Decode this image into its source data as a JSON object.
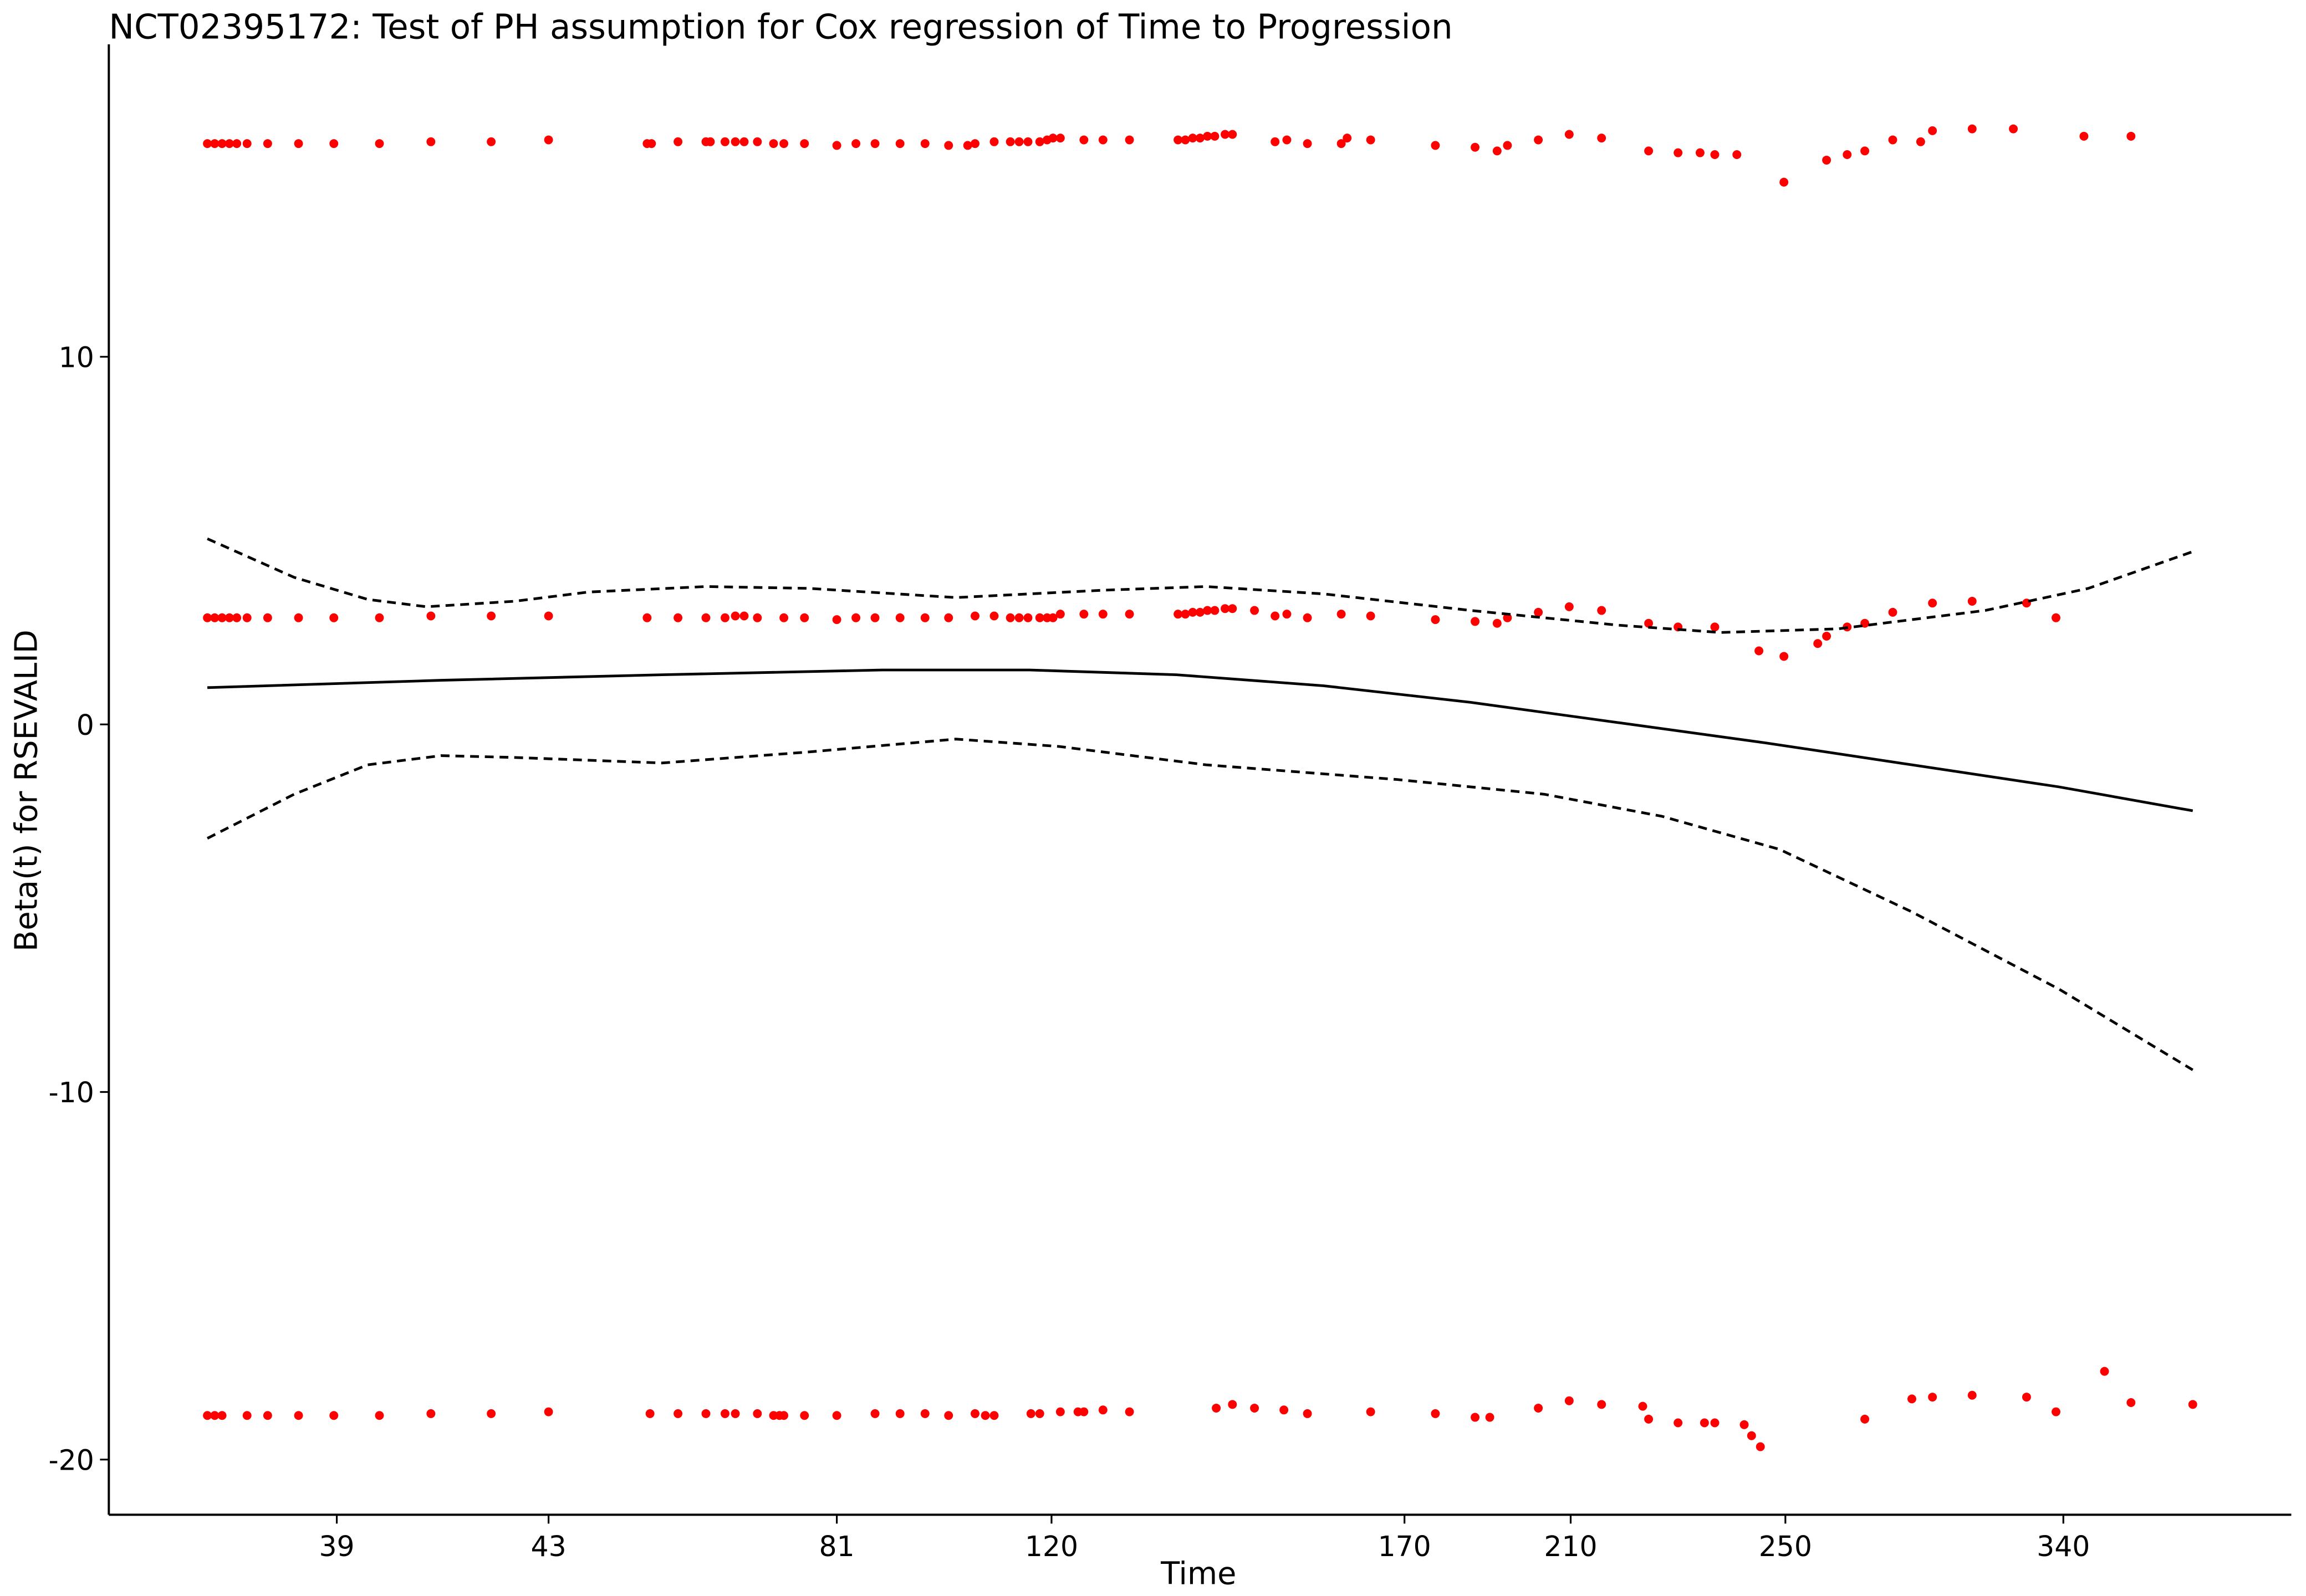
{
  "chart_data": {
    "type": "scatter",
    "title": "NCT02395172: Test of PH assumption for Cox regression of Time to Progression",
    "x_label": "Time",
    "y_label": "Beta(t) for RSEVALID",
    "xlim": [
      0,
      148.4
    ],
    "ylim": [
      -21.5,
      18.5
    ],
    "xticks": [
      {
        "value": 15.5,
        "label": "39"
      },
      {
        "value": 29.9,
        "label": "43"
      },
      {
        "value": 49.5,
        "label": "81"
      },
      {
        "value": 64.1,
        "label": "120"
      },
      {
        "value": 88.1,
        "label": "170"
      },
      {
        "value": 99.4,
        "label": "210"
      },
      {
        "value": 114.0,
        "label": "250"
      },
      {
        "value": 132.9,
        "label": "340"
      }
    ],
    "yticks": [
      -20,
      -10,
      0,
      10
    ],
    "series": [
      {
        "style": "points",
        "color": "#ff0000",
        "x": [
          6.7,
          7.2,
          7.7,
          8.2,
          8.7,
          9.4,
          10.8,
          12.9,
          15.3,
          18.4,
          21.9,
          26,
          29.9,
          36.6,
          36.9,
          38.7,
          40.6,
          40.9,
          41.9,
          42.6,
          43.2,
          44.1,
          45.2,
          45.9,
          47.3,
          49.5,
          50.8,
          52.1,
          53.8,
          55.5,
          57.1,
          58.4,
          58.9,
          60.2,
          61.3,
          61.9,
          62.5,
          63.3,
          63.8,
          64.2,
          64.7,
          66.3,
          67.6,
          69.4,
          72.7,
          73.2,
          73.7,
          74.2,
          74.7,
          75.2,
          75.9,
          76.4,
          79.3,
          80.1,
          81.5,
          83.8,
          84.2,
          85.8,
          90.2,
          92.9,
          94.4,
          95.1,
          97.2,
          99.3,
          101.5,
          104.7,
          106.7,
          108.2,
          109.2,
          110.7,
          113.9,
          116.8,
          118.2,
          119.4,
          121.3,
          123.2,
          124,
          126.7,
          129.5,
          134.3,
          137.5
        ],
        "values": [
          15.8,
          15.8,
          15.8,
          15.8,
          15.8,
          15.8,
          15.8,
          15.8,
          15.8,
          15.8,
          15.85,
          15.85,
          15.9,
          15.8,
          15.8,
          15.85,
          15.85,
          15.85,
          15.85,
          15.85,
          15.85,
          15.85,
          15.8,
          15.8,
          15.8,
          15.75,
          15.8,
          15.8,
          15.8,
          15.8,
          15.75,
          15.75,
          15.8,
          15.85,
          15.85,
          15.85,
          15.85,
          15.85,
          15.9,
          15.95,
          15.95,
          15.9,
          15.9,
          15.9,
          15.9,
          15.9,
          15.95,
          15.95,
          16.0,
          16.0,
          16.05,
          16.05,
          15.85,
          15.9,
          15.8,
          15.8,
          15.95,
          15.9,
          15.75,
          15.7,
          15.6,
          15.75,
          15.9,
          16.05,
          15.95,
          15.6,
          15.55,
          15.55,
          15.5,
          15.5,
          14.75,
          15.35,
          15.5,
          15.6,
          15.9,
          15.85,
          16.15,
          16.2,
          16.2,
          16.0,
          16.0
        ]
      },
      {
        "style": "points",
        "color": "#ff0000",
        "x": [
          6.7,
          7.2,
          7.7,
          8.2,
          8.7,
          9.4,
          10.8,
          12.9,
          15.3,
          18.4,
          21.9,
          26,
          29.9,
          36.6,
          38.7,
          40.6,
          41.9,
          42.6,
          43.2,
          44.1,
          45.9,
          47.3,
          49.5,
          50.8,
          52.1,
          53.8,
          55.5,
          57.1,
          58.9,
          60.2,
          61.3,
          61.9,
          62.5,
          63.3,
          63.8,
          64.2,
          64.7,
          66.3,
          67.6,
          69.4,
          72.7,
          73.2,
          73.7,
          74.2,
          74.7,
          75.2,
          75.9,
          76.4,
          77.9,
          79.3,
          80.1,
          81.5,
          83.8,
          85.8,
          90.2,
          92.9,
          94.4,
          95.1,
          97.2,
          99.3,
          101.5,
          104.7,
          106.7,
          109.2,
          112.2,
          113.9,
          116.2,
          116.8,
          118.2,
          119.4,
          121.3,
          124,
          126.7,
          130.4,
          132.4
        ],
        "values": [
          2.9,
          2.9,
          2.9,
          2.9,
          2.9,
          2.9,
          2.9,
          2.9,
          2.9,
          2.9,
          2.95,
          2.95,
          2.95,
          2.9,
          2.9,
          2.9,
          2.9,
          2.95,
          2.95,
          2.9,
          2.9,
          2.9,
          2.85,
          2.9,
          2.9,
          2.9,
          2.9,
          2.9,
          2.95,
          2.95,
          2.9,
          2.9,
          2.9,
          2.9,
          2.9,
          2.9,
          3.0,
          3.0,
          3.0,
          3.0,
          3.0,
          3.0,
          3.05,
          3.05,
          3.1,
          3.1,
          3.15,
          3.15,
          3.1,
          2.95,
          3.0,
          2.9,
          3.0,
          2.95,
          2.85,
          2.8,
          2.75,
          2.9,
          3.05,
          3.2,
          3.1,
          2.75,
          2.65,
          2.65,
          2.0,
          1.85,
          2.2,
          2.4,
          2.65,
          2.75,
          3.05,
          3.3,
          3.35,
          3.3,
          2.9
        ]
      },
      {
        "style": "points",
        "color": "#ff0000",
        "x": [
          6.7,
          7.2,
          7.7,
          9.4,
          10.8,
          12.9,
          15.3,
          18.4,
          21.9,
          26,
          29.9,
          36.8,
          38.7,
          40.6,
          41.9,
          42.6,
          44.1,
          45.2,
          45.6,
          45.9,
          47.3,
          49.5,
          52.1,
          53.8,
          55.5,
          57.1,
          58.9,
          59.6,
          60.2,
          62.7,
          63.3,
          64.7,
          65.9,
          66.3,
          67.6,
          69.4,
          75.3,
          76.4,
          77.9,
          79.9,
          81.5,
          85.8,
          90.2,
          92.9,
          93.9,
          97.2,
          99.3,
          101.5,
          104.3,
          104.7,
          106.7,
          108.5,
          109.2,
          111.2,
          111.7,
          112.3,
          119.4,
          122.6,
          124,
          126.7,
          130.4,
          132.4,
          135.7,
          137.5,
          141.7
        ],
        "values": [
          -18.8,
          -18.8,
          -18.8,
          -18.8,
          -18.8,
          -18.8,
          -18.8,
          -18.8,
          -18.75,
          -18.75,
          -18.7,
          -18.75,
          -18.75,
          -18.75,
          -18.75,
          -18.75,
          -18.75,
          -18.8,
          -18.8,
          -18.8,
          -18.8,
          -18.8,
          -18.75,
          -18.75,
          -18.75,
          -18.8,
          -18.75,
          -18.8,
          -18.8,
          -18.75,
          -18.75,
          -18.7,
          -18.7,
          -18.7,
          -18.65,
          -18.7,
          -18.6,
          -18.5,
          -18.6,
          -18.65,
          -18.75,
          -18.7,
          -18.75,
          -18.85,
          -18.85,
          -18.6,
          -18.4,
          -18.5,
          -18.55,
          -18.9,
          -19.0,
          -19.0,
          -19.0,
          -19.05,
          -19.35,
          -19.65,
          -18.9,
          -18.35,
          -18.3,
          -18.25,
          -18.3,
          -18.7,
          -17.6,
          -18.45,
          -18.5
        ]
      },
      {
        "style": "solid",
        "color": "#000000",
        "x": [
          6.7,
          22.6,
          37.6,
          52.6,
          62.6,
          72.6,
          82.6,
          92.6,
          102.6,
          112.6,
          122.6,
          132.6,
          141.7
        ],
        "values": [
          1.0,
          1.2,
          1.35,
          1.48,
          1.48,
          1.35,
          1.05,
          0.6,
          0.05,
          -0.5,
          -1.1,
          -1.7,
          -2.35
        ]
      },
      {
        "style": "dashed",
        "color": "#000000",
        "x": [
          6.7,
          12.6,
          17.6,
          21.6,
          27.6,
          32.6,
          40.6,
          47.6,
          57.6,
          67.6,
          74.6,
          82.6,
          92.6,
          102.6,
          109.6,
          117.6,
          127.6,
          134.6,
          141.7
        ],
        "values": [
          5.05,
          4.0,
          3.4,
          3.2,
          3.35,
          3.6,
          3.75,
          3.7,
          3.45,
          3.65,
          3.75,
          3.55,
          3.1,
          2.7,
          2.5,
          2.6,
          3.1,
          3.7,
          4.7
        ]
      },
      {
        "style": "dashed",
        "color": "#000000",
        "x": [
          6.7,
          12.6,
          17.6,
          22.6,
          27.6,
          37.6,
          47.6,
          57.6,
          64.6,
          74.6,
          87.6,
          97.6,
          105.6,
          113.6,
          122.6,
          132.6,
          141.7
        ],
        "values": [
          -3.1,
          -1.9,
          -1.1,
          -0.85,
          -0.9,
          -1.05,
          -0.75,
          -0.4,
          -0.6,
          -1.1,
          -1.5,
          -1.9,
          -2.5,
          -3.4,
          -5.1,
          -7.2,
          -9.4
        ]
      }
    ]
  }
}
